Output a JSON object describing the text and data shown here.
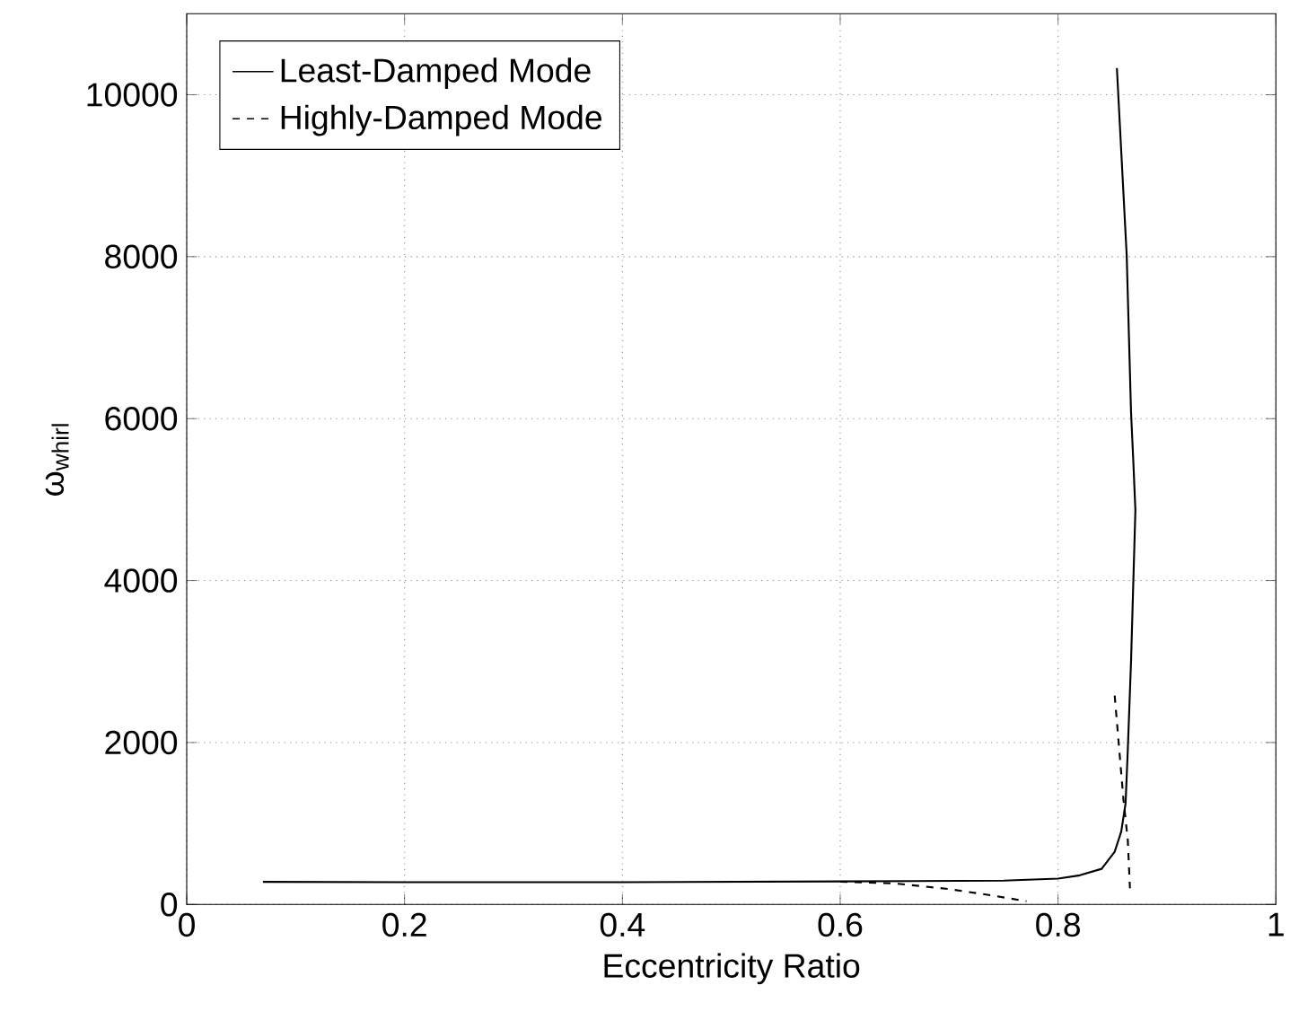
{
  "chart_data": {
    "type": "line",
    "xlabel": "Eccentricity Ratio",
    "ylabel": "ω$_{whirl}$",
    "xlim": [
      0,
      1
    ],
    "ylim": [
      0,
      11000
    ],
    "xticks": [
      0,
      0.2,
      0.4,
      0.6,
      0.8,
      1
    ],
    "yticks": [
      0,
      2000,
      4000,
      6000,
      8000,
      10000
    ],
    "grid": true,
    "legend": "top left",
    "series": [
      {
        "name": "Least-Damped Mode",
        "color": "#000000",
        "line_style": "solid",
        "x": [
          0.07,
          0.2,
          0.4,
          0.6,
          0.75,
          0.8,
          0.82,
          0.84,
          0.852,
          0.858,
          0.862,
          0.864,
          0.867,
          0.871,
          0.869,
          0.867,
          0.863,
          0.854
        ],
        "values": [
          280,
          275,
          275,
          285,
          295,
          320,
          360,
          440,
          650,
          900,
          1250,
          1900,
          3000,
          4870,
          5500,
          6080,
          8020,
          10330
        ]
      },
      {
        "name": "Highly-Damped Mode",
        "color": "#000000",
        "line_style": "dashed",
        "x": [
          0.6,
          0.65,
          0.7,
          0.74,
          0.771,
          0.8,
          0.852,
          0.86,
          0.864,
          0.866
        ],
        "values": [
          280,
          260,
          190,
          110,
          40,
          null,
          2580,
          1300,
          800,
          200
        ]
      }
    ]
  }
}
